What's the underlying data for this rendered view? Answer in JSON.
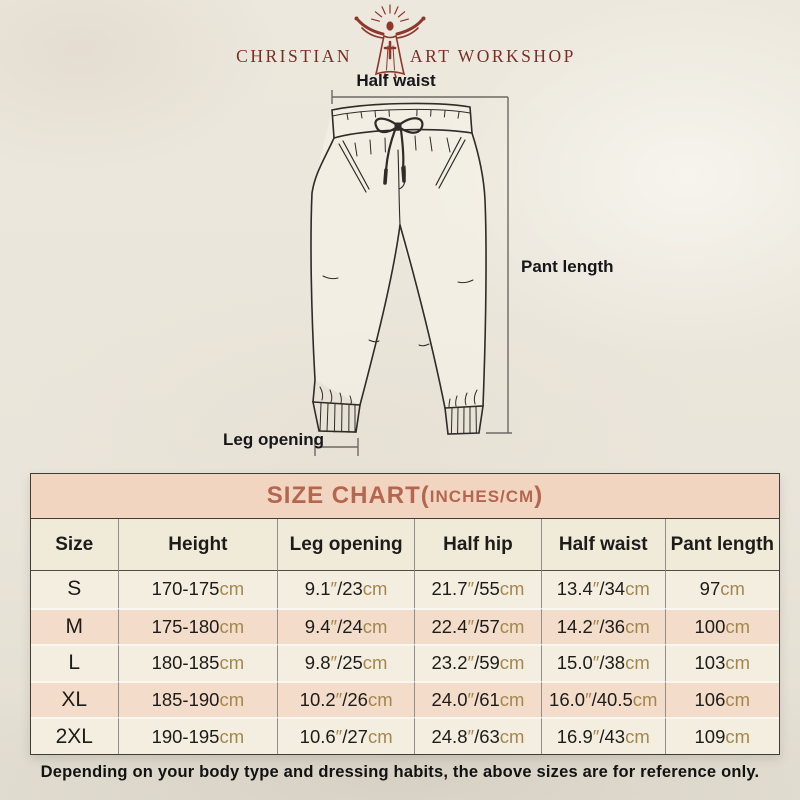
{
  "logo": {
    "left": "CHRISTIAN",
    "right": "ART WORKSHOP"
  },
  "diagram": {
    "labels": {
      "half_waist": "Half waist",
      "pant_length": "Pant length",
      "leg_opening": "Leg opening"
    }
  },
  "table": {
    "title_main": "SIZE CHART(",
    "title_small": "INCHES/CM",
    "title_close": ")",
    "columns": [
      "Size",
      "Height",
      "Leg opening",
      "Half hip",
      "Half waist",
      "Pant length"
    ],
    "rows": [
      [
        "S",
        "170-175cm",
        "9.1″/23cm",
        "21.7″/55cm",
        "13.4″/34cm",
        "97cm"
      ],
      [
        "M",
        "175-180cm",
        "9.4″/24cm",
        "22.4″/57cm",
        "14.2″/36cm",
        "100cm"
      ],
      [
        "L",
        "180-185cm",
        "9.8″/25cm",
        "23.2″/59cm",
        "15.0″/38cm",
        "103cm"
      ],
      [
        "XL",
        "185-190cm",
        "10.2″/26cm",
        "24.0″/61cm",
        "16.0″/40.5cm",
        "106cm"
      ],
      [
        "2XL",
        "190-195cm",
        "10.6″/27cm",
        "24.8″/63cm",
        "16.9″/43cm",
        "109cm"
      ]
    ]
  },
  "footer": {
    "note": "Depending on your body type and dressing habits, the above sizes are for reference only."
  },
  "colors": {
    "accent_brick": "#B4664F",
    "unit_tan": "#A3874F",
    "caption_bg": "#F2D5C0",
    "row_peach": "#F3DCC9",
    "row_cream": "#F3EEDF",
    "header_cream": "#F0EAD8",
    "logo_maroon": "#8F372B",
    "page_bg": "#EAE6DB"
  }
}
